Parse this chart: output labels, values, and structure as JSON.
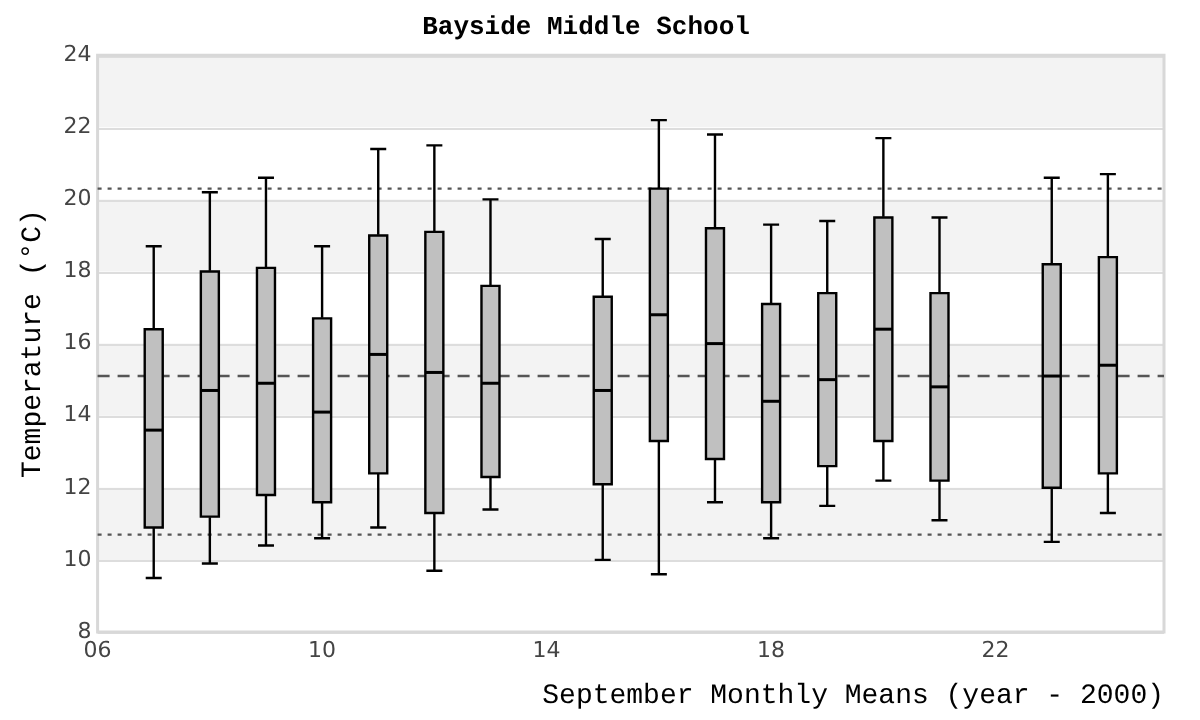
{
  "chart_data": {
    "type": "box",
    "title": "Bayside Middle School",
    "xlabel": "September Monthly Means (year - 2000)",
    "ylabel": "Temperature (°C)",
    "x": [
      7,
      8,
      9,
      10,
      11,
      12,
      13,
      15,
      16,
      17,
      18,
      19,
      20,
      21,
      23,
      24
    ],
    "color": "#c0c0c0",
    "boxes": [
      {
        "low": 9.5,
        "q1": 10.9,
        "median": 13.6,
        "q3": 16.4,
        "high": 18.7
      },
      {
        "low": 9.9,
        "q1": 11.2,
        "median": 14.7,
        "q3": 18.0,
        "high": 20.2
      },
      {
        "low": 10.4,
        "q1": 11.8,
        "median": 14.9,
        "q3": 18.1,
        "high": 20.6
      },
      {
        "low": 10.6,
        "q1": 11.6,
        "median": 14.1,
        "q3": 16.7,
        "high": 18.7
      },
      {
        "low": 10.9,
        "q1": 12.4,
        "median": 15.7,
        "q3": 19.0,
        "high": 21.4
      },
      {
        "low": 9.7,
        "q1": 11.3,
        "median": 15.2,
        "q3": 19.1,
        "high": 21.5
      },
      {
        "low": 11.4,
        "q1": 12.3,
        "median": 14.9,
        "q3": 17.6,
        "high": 20.0
      },
      {
        "low": 10.0,
        "q1": 12.1,
        "median": 14.7,
        "q3": 17.3,
        "high": 18.9
      },
      {
        "low": 9.6,
        "q1": 13.3,
        "median": 16.8,
        "q3": 20.3,
        "high": 22.2
      },
      {
        "low": 11.6,
        "q1": 12.8,
        "median": 16.0,
        "q3": 19.2,
        "high": 21.8
      },
      {
        "low": 10.6,
        "q1": 11.6,
        "median": 14.4,
        "q3": 17.1,
        "high": 19.3
      },
      {
        "low": 11.5,
        "q1": 12.6,
        "median": 15.0,
        "q3": 17.4,
        "high": 19.4
      },
      {
        "low": 12.2,
        "q1": 13.3,
        "median": 16.4,
        "q3": 19.5,
        "high": 21.7
      },
      {
        "low": 11.1,
        "q1": 12.2,
        "median": 14.8,
        "q3": 17.4,
        "high": 19.5
      },
      {
        "low": 10.5,
        "q1": 12.0,
        "median": 15.1,
        "q3": 18.2,
        "high": 20.6
      },
      {
        "low": 11.3,
        "q1": 12.4,
        "median": 15.4,
        "q3": 18.4,
        "high": 20.7
      }
    ],
    "xlim": [
      6,
      25
    ],
    "xticks": [
      {
        "value": 6,
        "label": "06"
      },
      10,
      14,
      18,
      22
    ],
    "ylim": [
      8,
      24
    ],
    "yticks": [
      8,
      10,
      12,
      14,
      16,
      18,
      20,
      22,
      24
    ],
    "grid": "y",
    "ref_lines": [
      {
        "axis": "y",
        "value": 20.3,
        "line_style": "dotted",
        "color": "#555555"
      },
      {
        "axis": "y",
        "value": 15.1,
        "line_style": "dashed",
        "color": "#555555"
      },
      {
        "axis": "y",
        "value": 10.7,
        "line_style": "dotted",
        "color": "#555555"
      }
    ]
  }
}
